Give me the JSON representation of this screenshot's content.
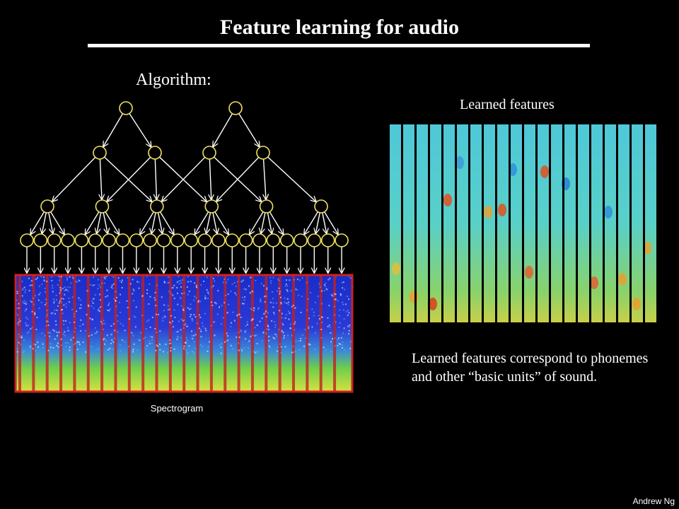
{
  "slide": {
    "title": "Feature learning for audio",
    "algorithm_label": "Algorithm:",
    "features_label": "Learned features",
    "caption": "Learned features correspond to phonemes and other “basic units” of sound.",
    "spectrogram_label": "Spectrogram",
    "author": "Andrew Ng"
  },
  "colors": {
    "background": "#000000",
    "node_stroke": "#f0e060",
    "edge": "#ffffff",
    "spectrogram_border": "#cc2222"
  },
  "network": {
    "layers": [
      {
        "name": "top",
        "count": 2
      },
      {
        "name": "layer3",
        "count": 4
      },
      {
        "name": "layer2",
        "count": 6
      },
      {
        "name": "input",
        "count": 24
      }
    ]
  }
}
